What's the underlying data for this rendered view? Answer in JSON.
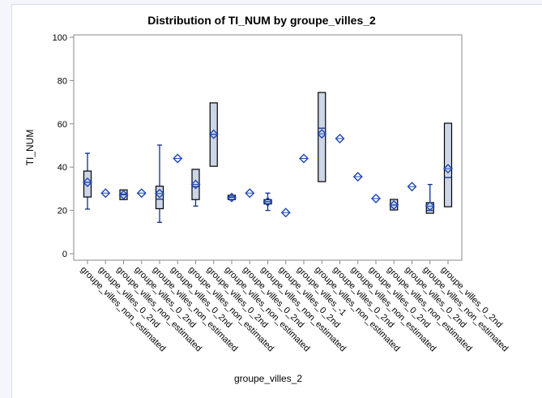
{
  "chart_data": {
    "type": "box",
    "title": "Distribution of TI_NUM by groupe_villes_2",
    "xlabel": "groupe_villes_2",
    "ylabel": "TI_NUM",
    "ylim": [
      0,
      100
    ],
    "yticks": [
      0,
      20,
      40,
      60,
      80,
      100
    ],
    "grid": false,
    "colors": {
      "box_fill": "#cdd6e6",
      "box_stroke": "#000000",
      "whisker": "#0b2f8c",
      "mean_marker": "#1c47b8",
      "axis": "#8a8a8a"
    },
    "categories": [
      "groupe_villes_non_estimated",
      "groupe_villes_0_2nd",
      "groupe_villes_non_estimated",
      "groupe_villes_0_2nd",
      "groupe_villes_non_estimated",
      "groupe_villes_0_2nd",
      "groupe_villes_non_estimated",
      "groupe_villes_0_2nd",
      "groupe_villes_non_estimated",
      "groupe_villes_0_2nd",
      "groupe_villes_non_estimated",
      "groupe_villes_0_2nd",
      "groupe_villes_-1",
      "groupe_villes_non_estimated",
      "groupe_villes_0_2nd",
      "groupe_villes_non_estimated",
      "groupe_villes_0_2nd",
      "groupe_villes_non_estimated",
      "groupe_villes_0_2nd",
      "groupe_villes_non_estimated",
      "groupe_villes_0_2nd"
    ],
    "boxes": [
      {
        "min": 20.6,
        "q1": 26.2,
        "median": 33,
        "q3": 38.2,
        "max": 46.4,
        "mean": 33
      },
      {
        "min": 28,
        "q1": 28,
        "median": 28,
        "q3": 28,
        "max": 28,
        "mean": 28
      },
      {
        "min": 25,
        "q1": 25,
        "median": 27.5,
        "q3": 29.5,
        "max": 29.5,
        "mean": 27.2
      },
      {
        "min": 28,
        "q1": 28,
        "median": 28,
        "q3": 28,
        "max": 28,
        "mean": 28
      },
      {
        "min": 14.5,
        "q1": 20.8,
        "median": 25.2,
        "q3": 31.2,
        "max": 50.2,
        "mean": 27.8
      },
      {
        "min": 44,
        "q1": 44,
        "median": 44,
        "q3": 44,
        "max": 44,
        "mean": 44
      },
      {
        "min": 22,
        "q1": 25,
        "median": 31,
        "q3": 39,
        "max": 39,
        "mean": 32
      },
      {
        "min": 40.4,
        "q1": 40.4,
        "median": 55.2,
        "q3": 69.7,
        "max": 69.7,
        "mean": 55.2
      },
      {
        "min": 25,
        "q1": 25,
        "median": 26.2,
        "q3": 27,
        "max": 27,
        "mean": 26
      },
      {
        "min": 28,
        "q1": 28,
        "median": 28,
        "q3": 28,
        "max": 28,
        "mean": 28
      },
      {
        "min": 20,
        "q1": 23,
        "median": 24,
        "q3": 25,
        "max": 28,
        "mean": 24
      },
      {
        "min": 19,
        "q1": 19,
        "median": 19,
        "q3": 19,
        "max": 19,
        "mean": 19
      },
      {
        "min": 44,
        "q1": 44,
        "median": 44,
        "q3": 44,
        "max": 44,
        "mean": 44
      },
      {
        "min": 33.3,
        "q1": 33.3,
        "median": 58,
        "q3": 74.5,
        "max": 74.5,
        "mean": 55.4
      },
      {
        "min": 53.2,
        "q1": 53.2,
        "median": 53.2,
        "q3": 53.2,
        "max": 53.2,
        "mean": 53.2
      },
      {
        "min": 35.6,
        "q1": 35.6,
        "median": 35.6,
        "q3": 35.6,
        "max": 35.6,
        "mean": 35.6
      },
      {
        "min": 25.5,
        "q1": 25.5,
        "median": 25.5,
        "q3": 25.5,
        "max": 25.5,
        "mean": 25.5
      },
      {
        "min": 20.2,
        "q1": 20.2,
        "median": 22.5,
        "q3": 25.1,
        "max": 25.1,
        "mean": 22.5
      },
      {
        "min": 31,
        "q1": 31,
        "median": 31,
        "q3": 31,
        "max": 31,
        "mean": 31
      },
      {
        "min": 18.7,
        "q1": 18.7,
        "median": 20,
        "q3": 23.6,
        "max": 32,
        "mean": 22
      },
      {
        "min": 21.7,
        "q1": 21.7,
        "median": 35.2,
        "q3": 60.3,
        "max": 60.3,
        "mean": 39.3
      }
    ]
  }
}
